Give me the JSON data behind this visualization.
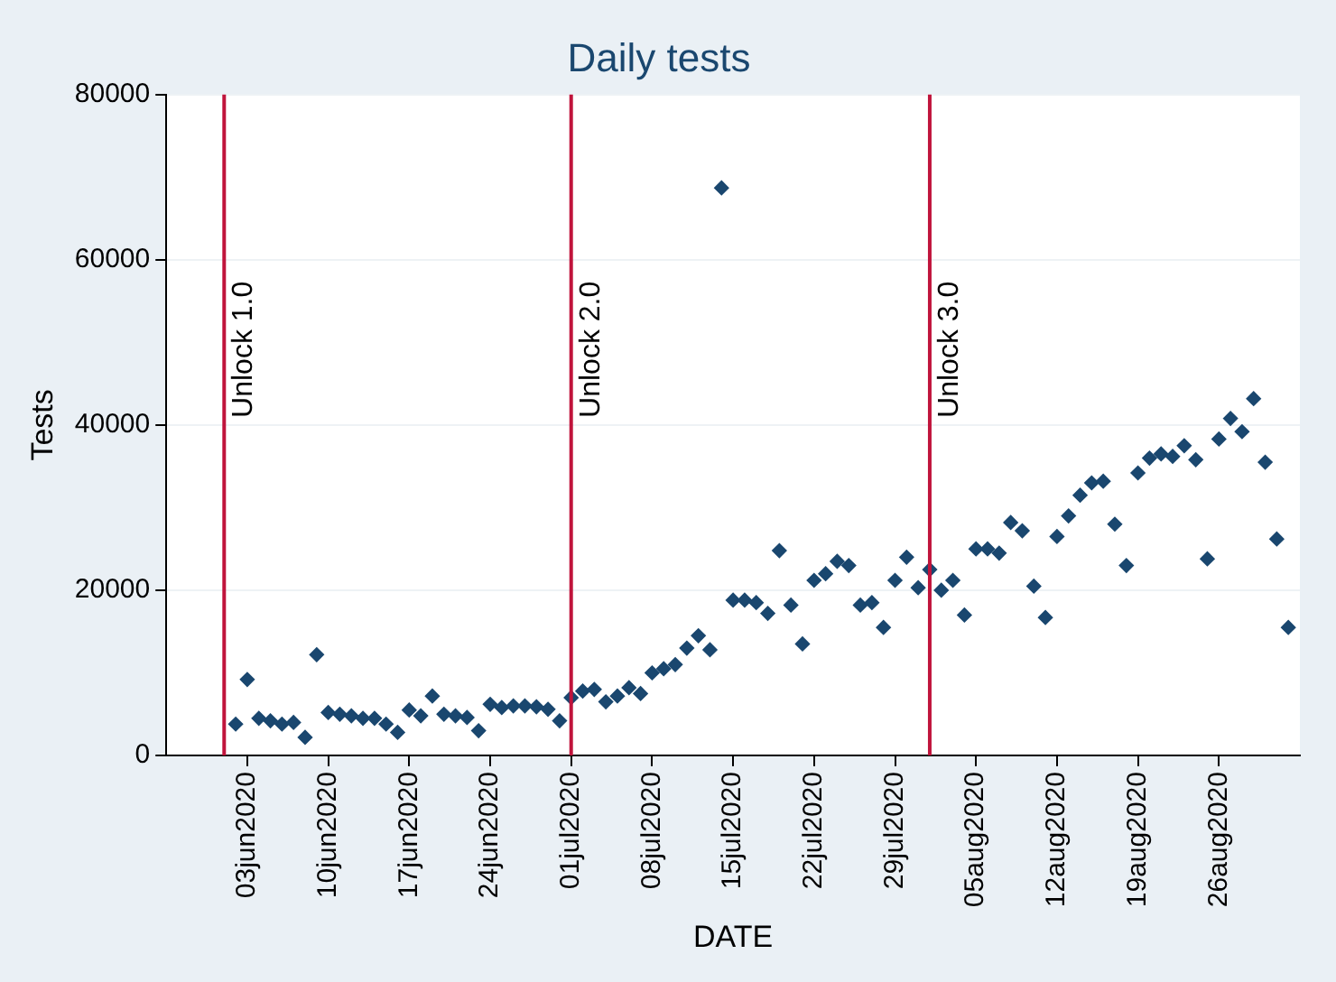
{
  "chart_data": {
    "type": "scatter",
    "title": "Daily tests",
    "xlabel": "DATE",
    "ylabel": "Tests",
    "x": [
      "2020-06-02",
      "2020-06-03",
      "2020-06-04",
      "2020-06-05",
      "2020-06-06",
      "2020-06-07",
      "2020-06-08",
      "2020-06-09",
      "2020-06-10",
      "2020-06-11",
      "2020-06-12",
      "2020-06-13",
      "2020-06-14",
      "2020-06-15",
      "2020-06-16",
      "2020-06-17",
      "2020-06-18",
      "2020-06-19",
      "2020-06-20",
      "2020-06-21",
      "2020-06-22",
      "2020-06-23",
      "2020-06-24",
      "2020-06-25",
      "2020-06-26",
      "2020-06-27",
      "2020-06-28",
      "2020-06-29",
      "2020-06-30",
      "2020-07-01",
      "2020-07-02",
      "2020-07-03",
      "2020-07-04",
      "2020-07-05",
      "2020-07-06",
      "2020-07-07",
      "2020-07-08",
      "2020-07-09",
      "2020-07-10",
      "2020-07-11",
      "2020-07-12",
      "2020-07-13",
      "2020-07-14",
      "2020-07-15",
      "2020-07-16",
      "2020-07-17",
      "2020-07-18",
      "2020-07-19",
      "2020-07-20",
      "2020-07-21",
      "2020-07-22",
      "2020-07-23",
      "2020-07-24",
      "2020-07-25",
      "2020-07-26",
      "2020-07-27",
      "2020-07-28",
      "2020-07-29",
      "2020-07-30",
      "2020-07-31",
      "2020-08-01",
      "2020-08-02",
      "2020-08-03",
      "2020-08-04",
      "2020-08-05",
      "2020-08-06",
      "2020-08-07",
      "2020-08-08",
      "2020-08-09",
      "2020-08-10",
      "2020-08-11",
      "2020-08-12",
      "2020-08-13",
      "2020-08-14",
      "2020-08-15",
      "2020-08-16",
      "2020-08-17",
      "2020-08-18",
      "2020-08-19",
      "2020-08-20",
      "2020-08-21",
      "2020-08-22",
      "2020-08-23",
      "2020-08-24",
      "2020-08-25",
      "2020-08-26",
      "2020-08-27",
      "2020-08-28",
      "2020-08-29",
      "2020-08-30",
      "2020-08-31",
      "2020-09-01"
    ],
    "series": [
      {
        "color": "#1a476f",
        "values": [
          3800,
          9200,
          4500,
          4200,
          3800,
          4000,
          2200,
          12200,
          5200,
          5000,
          4800,
          4500,
          4500,
          3800,
          2800,
          5500,
          4800,
          7200,
          5000,
          4800,
          4600,
          3000,
          6200,
          5800,
          6000,
          6000,
          5900,
          5600,
          4200,
          7000,
          7800,
          8000,
          6500,
          7200,
          8200,
          7500,
          10000,
          10500,
          11000,
          13000,
          14500,
          12800,
          68700,
          18800,
          18800,
          18500,
          17200,
          24800,
          18200,
          13500,
          21200,
          22000,
          23500,
          23000,
          18200,
          18500,
          15500,
          21200,
          24000,
          20300,
          22500,
          20000,
          21200,
          17000,
          25000,
          25000,
          24500,
          28200,
          27200,
          20500,
          16700,
          26500,
          29000,
          31500,
          33000,
          33200,
          28000,
          23000,
          34200,
          36000,
          36500,
          36200,
          37500,
          35800,
          23800,
          38300,
          40800,
          39200,
          43200,
          35500,
          26200,
          15500
        ]
      }
    ],
    "marker": "diamond",
    "grid": "y",
    "legend": false,
    "xlim": [
      "2020-05-27",
      "2020-09-02"
    ],
    "xticks": [
      {
        "value": "2020-06-03",
        "label": "03jun2020"
      },
      {
        "value": "2020-06-10",
        "label": "10jun2020"
      },
      {
        "value": "2020-06-17",
        "label": "17jun2020"
      },
      {
        "value": "2020-06-24",
        "label": "24jun2020"
      },
      {
        "value": "2020-07-01",
        "label": "01jul2020"
      },
      {
        "value": "2020-07-08",
        "label": "08jul2020"
      },
      {
        "value": "2020-07-15",
        "label": "15jul2020"
      },
      {
        "value": "2020-07-22",
        "label": "22jul2020"
      },
      {
        "value": "2020-07-29",
        "label": "29jul2020"
      },
      {
        "value": "2020-08-05",
        "label": "05aug2020"
      },
      {
        "value": "2020-08-12",
        "label": "12aug2020"
      },
      {
        "value": "2020-08-19",
        "label": "19aug2020"
      },
      {
        "value": "2020-08-26",
        "label": "26aug2020"
      }
    ],
    "ylim": [
      0,
      80000
    ],
    "yticks": [
      0,
      20000,
      40000,
      60000,
      80000
    ],
    "ref_lines": [
      {
        "axis": "x",
        "value": "2020-06-01",
        "label": "Unlock 1.0",
        "color": "#c0143c"
      },
      {
        "axis": "x",
        "value": "2020-07-01",
        "label": "Unlock 2.0",
        "color": "#c0143c"
      },
      {
        "axis": "x",
        "value": "2020-08-01",
        "label": "Unlock 3.0",
        "color": "#c0143c"
      }
    ]
  }
}
